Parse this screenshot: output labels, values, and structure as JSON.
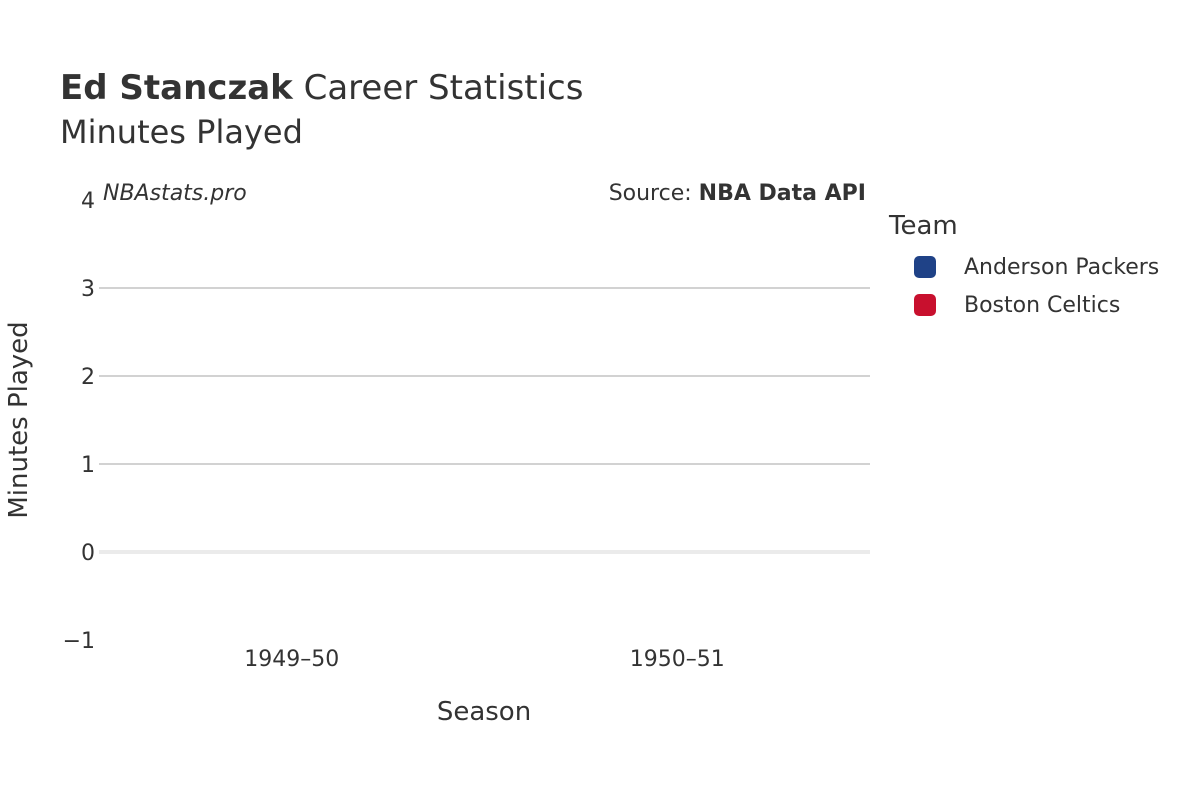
{
  "header": {
    "player_name": "Ed Stanczak",
    "title_suffix": "Career Statistics",
    "subtitle": "Minutes Played"
  },
  "watermark": "NBAstats.pro",
  "source": {
    "prefix": "Source: ",
    "name": "NBA Data API"
  },
  "legend": {
    "title": "Team",
    "items": [
      {
        "label": "Anderson Packers",
        "color": "#1f4287"
      },
      {
        "label": "Boston Celtics",
        "color": "#c8102e"
      }
    ]
  },
  "chart_data": {
    "type": "bar",
    "title": "Ed Stanczak Career Statistics",
    "subtitle": "Minutes Played",
    "xlabel": "Season",
    "ylabel": "Minutes Played",
    "categories": [
      "1949–50",
      "1950–51"
    ],
    "y_ticks": [
      -1,
      0,
      1,
      2,
      3,
      4
    ],
    "y_tick_labels": [
      "−1",
      "0",
      "1",
      "2",
      "3",
      "4"
    ],
    "ylim": [
      -1,
      4
    ],
    "grid": true,
    "legend_position": "right",
    "series": [
      {
        "name": "Anderson Packers",
        "color": "#1f4287",
        "values": [
          null,
          null
        ]
      },
      {
        "name": "Boston Celtics",
        "color": "#c8102e",
        "values": [
          null,
          null
        ]
      }
    ]
  }
}
